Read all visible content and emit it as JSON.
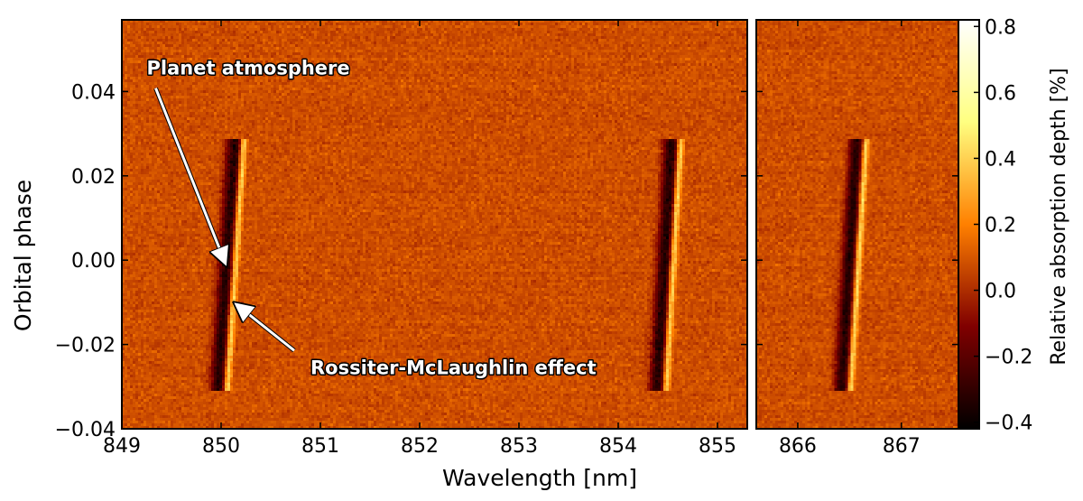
{
  "chart_data": {
    "type": "heatmap",
    "title": "",
    "xlabel": "Wavelength [nm]",
    "ylabel": "Orbital phase",
    "colorbar_label": "Relative absorption depth [%]",
    "colormap": "afmhot",
    "ylim": [
      -0.04,
      0.057
    ],
    "y_ticks": [
      -0.04,
      -0.02,
      0.0,
      0.02,
      0.04
    ],
    "y_tick_labels": [
      "−0.04",
      "−0.02",
      "0.00",
      "0.02",
      "0.04"
    ],
    "panels": [
      {
        "xlim": [
          849.0,
          855.3
        ],
        "x_ticks": [
          849,
          850,
          851,
          852,
          853,
          854,
          855
        ],
        "x_tick_labels": [
          "849",
          "850",
          "851",
          "852",
          "853",
          "854",
          "855"
        ],
        "signals": [
          {
            "center_top": 850.17,
            "center_bottom": 850.0,
            "absorption_width": 0.08,
            "emission_width": 0.035,
            "phase_range": [
              -0.031,
              0.029
            ]
          },
          {
            "center_top": 854.57,
            "center_bottom": 854.42,
            "absorption_width": 0.08,
            "emission_width": 0.035,
            "phase_range": [
              -0.031,
              0.029
            ]
          }
        ]
      },
      {
        "xlim": [
          865.6,
          867.55
        ],
        "x_ticks": [
          866,
          867
        ],
        "x_tick_labels": [
          "866",
          "867"
        ],
        "signals": [
          {
            "center_top": 866.6,
            "center_bottom": 866.45,
            "absorption_width": 0.07,
            "emission_width": 0.03,
            "phase_range": [
              -0.031,
              0.029
            ]
          }
        ]
      }
    ],
    "colorbar": {
      "range": [
        -0.42,
        0.82
      ],
      "ticks": [
        -0.4,
        -0.2,
        0.0,
        0.2,
        0.4,
        0.6,
        0.8
      ],
      "tick_labels": [
        "−0.4",
        "−0.2",
        "0.0",
        "0.2",
        "0.4",
        "0.6",
        "0.8"
      ]
    },
    "annotations": [
      {
        "text": "Planet atmosphere",
        "text_at": [
          849.25,
          0.044
        ],
        "arrow_to": [
          850.03,
          0.0
        ]
      },
      {
        "text": "Rossiter-McLaughlin effect",
        "text_at": [
          850.9,
          -0.027
        ],
        "arrow_to": [
          850.18,
          -0.011
        ]
      }
    ],
    "grid": false,
    "legend": "none"
  }
}
